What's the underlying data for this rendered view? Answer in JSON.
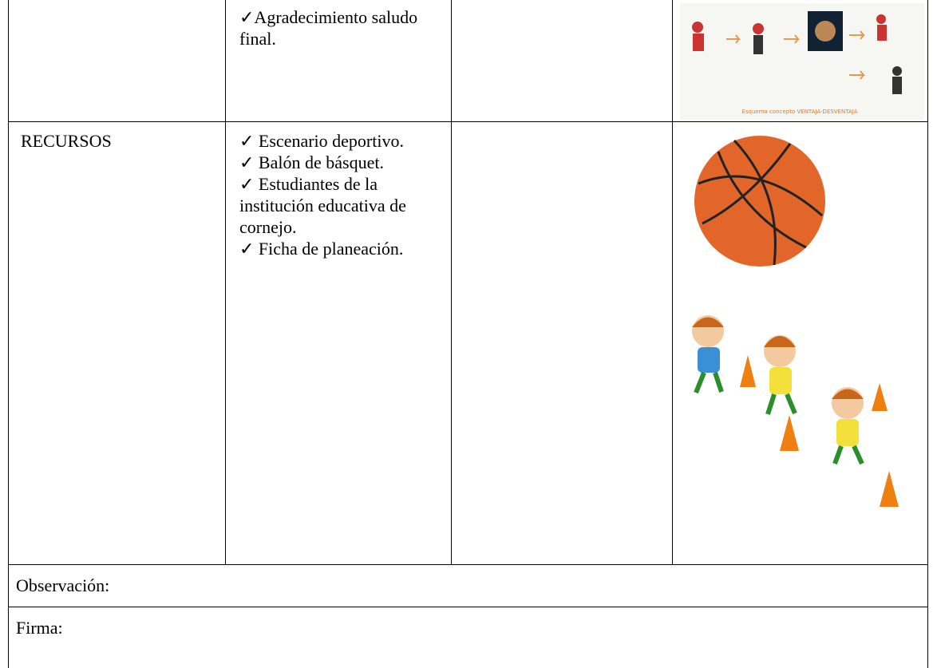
{
  "table": {
    "rows": [
      {
        "activities": [
          "✓Agradecimiento saludo final."
        ],
        "image_caption": "Esquema concepto VENTAJA-DESVENTAJA"
      },
      {
        "label": "RECURSOS",
        "items": [
          "✓ Escenario deportivo.",
          "✓ Balón de básquet.",
          "✓ Estudiantes de la institución educativa de cornejo.",
          "✓ Ficha de planeación."
        ]
      }
    ]
  },
  "footer": {
    "observation": "Observación:",
    "signature": "Firma:"
  }
}
